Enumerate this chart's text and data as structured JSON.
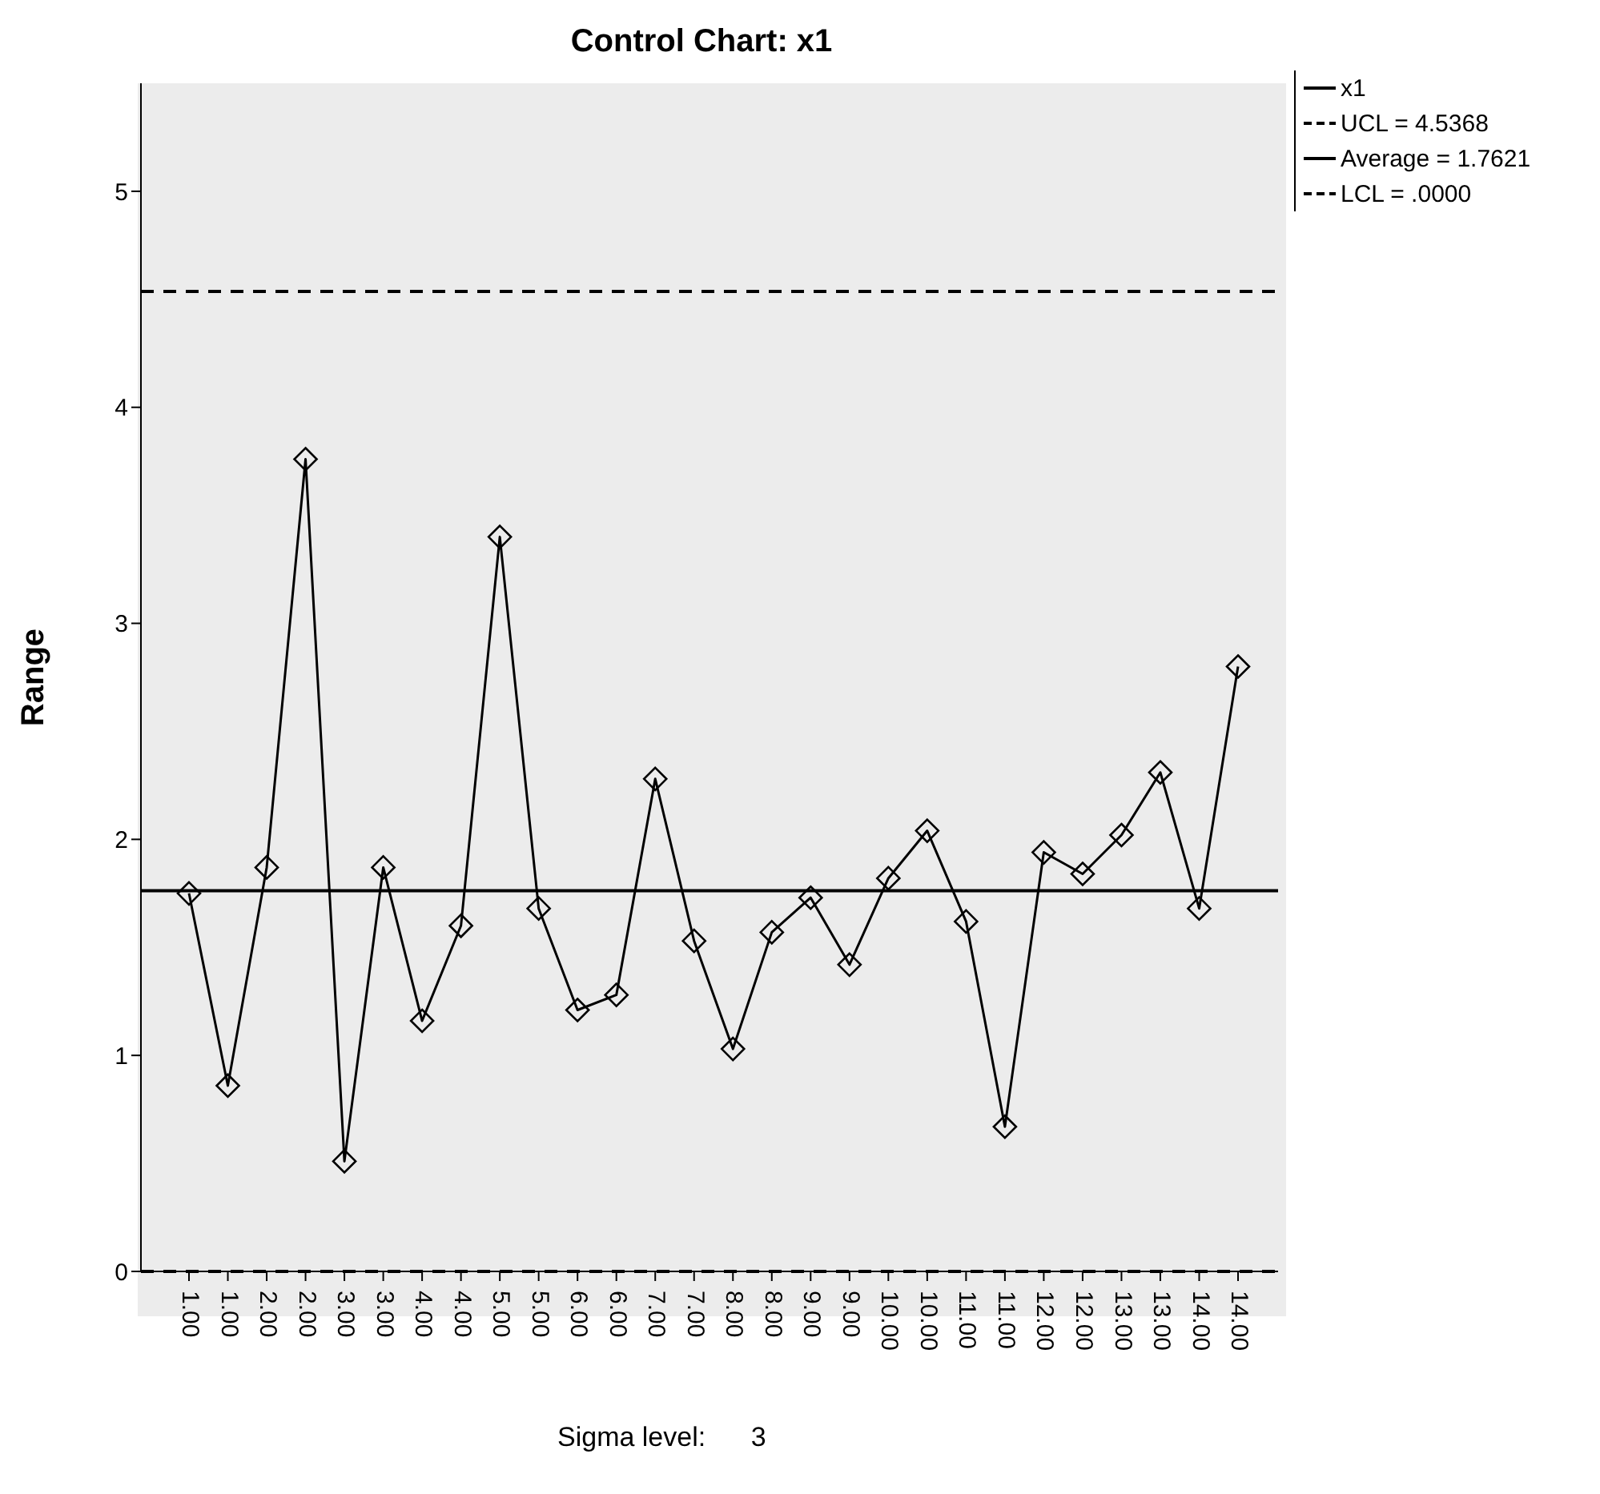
{
  "chart_data": {
    "type": "line",
    "title": "Control Chart: x1",
    "ylabel": "Range",
    "annotations": [
      "Sigma level:      3"
    ],
    "categories": [
      "1.00",
      "1.00",
      "2.00",
      "2.00",
      "3.00",
      "3.00",
      "4.00",
      "4.00",
      "5.00",
      "5.00",
      "6.00",
      "6.00",
      "7.00",
      "7.00",
      "8.00",
      "8.00",
      "9.00",
      "9.00",
      "10.00",
      "10.00",
      "11.00",
      "11.00",
      "12.00",
      "12.00",
      "13.00",
      "13.00",
      "14.00",
      "14.00"
    ],
    "series": [
      {
        "name": "x1",
        "color": "#000000",
        "values": [
          1.75,
          0.86,
          1.87,
          3.76,
          0.51,
          1.87,
          1.16,
          1.6,
          3.4,
          1.68,
          1.21,
          1.28,
          2.28,
          1.53,
          1.03,
          1.57,
          1.73,
          1.42,
          1.82,
          2.04,
          1.62,
          0.67,
          1.94,
          1.84,
          2.02,
          2.31,
          1.68,
          2.8
        ]
      }
    ],
    "ref_lines": [
      {
        "axis": "y",
        "value": 4.5368,
        "label": "UCL = 4.5368",
        "line_style": "dashed",
        "color": "#000000"
      },
      {
        "axis": "y",
        "value": 1.7621,
        "label": "Average = 1.7621",
        "line_style": "solid",
        "color": "#000000"
      },
      {
        "axis": "y",
        "value": 0,
        "label": "LCL = .0000",
        "line_style": "dashed",
        "color": "#000000"
      }
    ],
    "ylim": [
      0,
      5.5
    ],
    "yticks": [
      0,
      1,
      2,
      3,
      4,
      5
    ],
    "legend": "top right",
    "marker": "diamond",
    "line_style": "solid"
  }
}
